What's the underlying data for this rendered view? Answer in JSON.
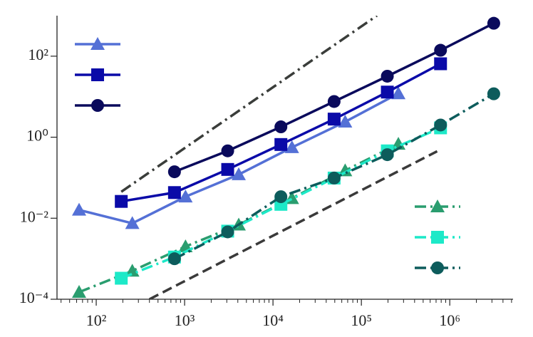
{
  "chart_data": {
    "type": "line",
    "xscale": "log",
    "yscale": "log",
    "xlim": [
      36,
      5200000
    ],
    "ylim": [
      0.0001,
      1000
    ],
    "xticks": [
      {
        "value": 100,
        "label": "10²"
      },
      {
        "value": 1000,
        "label": "10³"
      },
      {
        "value": 10000,
        "label": "10⁴"
      },
      {
        "value": 100000,
        "label": "10⁵"
      },
      {
        "value": 1000000,
        "label": "10⁶"
      }
    ],
    "yticks": [
      {
        "value": 0.0001,
        "label": "10⁻⁴"
      },
      {
        "value": 0.01,
        "label": "10⁻²"
      },
      {
        "value": 1,
        "label": "10⁰"
      },
      {
        "value": 100,
        "label": "10²"
      }
    ],
    "series": [
      {
        "color": "#5470d6",
        "marker": "triangle",
        "dash": "solid",
        "legend": "upper-left",
        "x": [
          64,
          256,
          1024,
          4096,
          16384,
          65536,
          262144
        ],
        "values": [
          0.016,
          0.0075,
          0.034,
          0.12,
          0.56,
          2.4,
          12
        ]
      },
      {
        "color": "#0a0aa8",
        "marker": "square",
        "dash": "solid",
        "legend": "upper-left",
        "x": [
          192,
          768,
          3072,
          12288,
          49152,
          196608,
          786432
        ],
        "values": [
          0.026,
          0.043,
          0.16,
          0.66,
          2.8,
          13,
          65
        ]
      },
      {
        "color": "#0a0a5c",
        "marker": "circle",
        "dash": "solid",
        "legend": "upper-left",
        "x": [
          768,
          3072,
          12288,
          49152,
          196608,
          786432,
          3145728
        ],
        "values": [
          0.14,
          0.46,
          1.8,
          7.6,
          32,
          140,
          650
        ]
      },
      {
        "color": "#2a9d6f",
        "marker": "triangle",
        "dash": "dashdot",
        "legend": "lower-right",
        "x": [
          64,
          256,
          1024,
          4096,
          16384,
          65536,
          262144
        ],
        "values": [
          0.00015,
          0.0005,
          0.002,
          0.0069,
          0.031,
          0.15,
          0.68
        ]
      },
      {
        "color": "#1de9c8",
        "marker": "square",
        "dash": "dashdot",
        "legend": "lower-right",
        "x": [
          192,
          768,
          3072,
          12288,
          49152,
          196608,
          786432
        ],
        "values": [
          0.00033,
          0.0011,
          0.0048,
          0.022,
          0.098,
          0.46,
          1.7
        ]
      },
      {
        "color": "#0d5c5c",
        "marker": "circle",
        "dash": "dashdot",
        "legend": "lower-right",
        "x": [
          768,
          3072,
          12288,
          49152,
          196608,
          786432,
          3145728
        ],
        "values": [
          0.001,
          0.0046,
          0.034,
          0.098,
          0.37,
          2.0,
          11.8
        ]
      },
      {
        "color": "#3a3d3a",
        "marker": "none",
        "dash": "dashdot",
        "x": [
          192,
          150000
        ],
        "values": [
          0.045,
          1000
        ]
      },
      {
        "color": "#3a3a3a",
        "marker": "none",
        "dash": "dashed",
        "x": [
          400,
          720000
        ],
        "values": [
          0.0001,
          0.45
        ]
      }
    ]
  }
}
